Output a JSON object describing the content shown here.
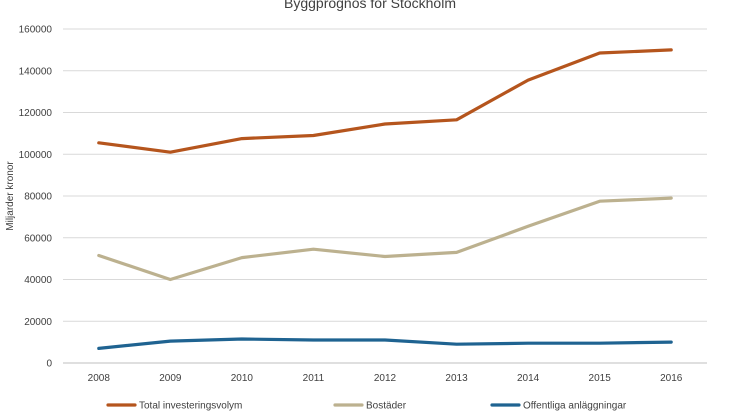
{
  "chart_data": {
    "type": "line",
    "title": "Byggprognos för Stockholm",
    "ylabel": "Miljarder kronor",
    "xlabel": "",
    "categories": [
      "2008",
      "2009",
      "2010",
      "2011",
      "2012",
      "2013",
      "2014",
      "2015",
      "2016"
    ],
    "ylim": [
      0,
      160000
    ],
    "yticks": [
      "0",
      "20000",
      "40000",
      "60000",
      "80000",
      "100000",
      "120000",
      "140000",
      "160000"
    ],
    "grid": true,
    "legend_position": "bottom",
    "series": [
      {
        "name": "Total investeringsvolym",
        "color": "#B5551D",
        "values": [
          105500,
          101000,
          107500,
          109000,
          114500,
          116500,
          135500,
          148500,
          150000
        ]
      },
      {
        "name": "Bostäder",
        "color": "#BCB18F",
        "values": [
          51500,
          40000,
          50500,
          54500,
          51000,
          53000,
          65500,
          77500,
          79000
        ]
      },
      {
        "name": "Offentliga anläggningar",
        "color": "#1F6391",
        "values": [
          7000,
          10500,
          11500,
          11000,
          11000,
          9000,
          9500,
          9500,
          10000
        ]
      }
    ]
  }
}
